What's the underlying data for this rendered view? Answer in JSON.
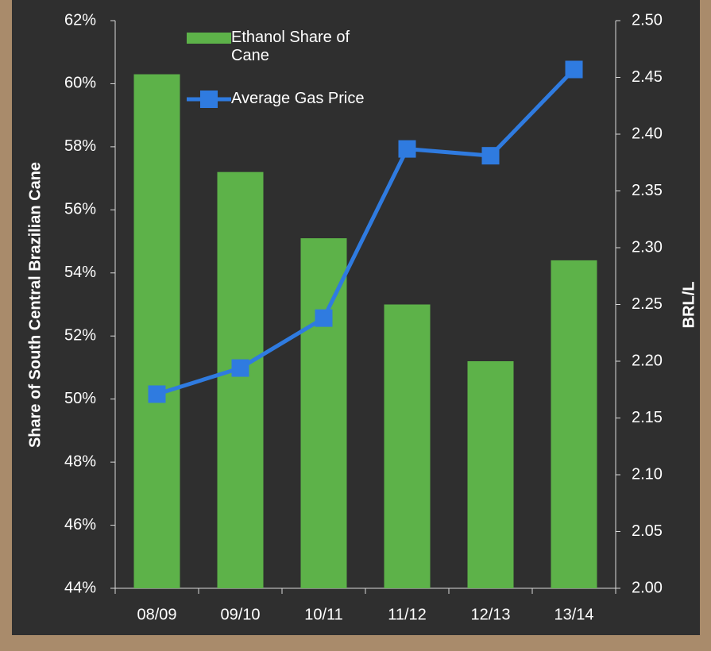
{
  "chart_data": {
    "type": "bar_line",
    "categories": [
      "08/09",
      "09/10",
      "10/11",
      "11/12",
      "12/13",
      "13/14"
    ],
    "series": [
      {
        "name": "Ethanol Share of Cane",
        "type": "bar",
        "color": "#5db249",
        "values": [
          60.3,
          57.2,
          55.1,
          53.0,
          51.2,
          54.4
        ]
      },
      {
        "name": "Average Gas Price",
        "type": "line",
        "axis": "y2",
        "color": "#2f7be0",
        "values": [
          2.171,
          2.194,
          2.238,
          2.387,
          2.381,
          2.457
        ]
      }
    ],
    "ylabel": "Share of South Central Brazilian Cane",
    "y2label": "BRL/L",
    "ylim": [
      44,
      62
    ],
    "yticks": [
      {
        "value": 44,
        "label": "44%"
      },
      {
        "value": 46,
        "label": "46%"
      },
      {
        "value": 48,
        "label": "48%"
      },
      {
        "value": 50,
        "label": "50%"
      },
      {
        "value": 52,
        "label": "52%"
      },
      {
        "value": 54,
        "label": "54%"
      },
      {
        "value": 56,
        "label": "56%"
      },
      {
        "value": 58,
        "label": "58%"
      },
      {
        "value": 60,
        "label": "60%"
      },
      {
        "value": 62,
        "label": "62%"
      }
    ],
    "y2lim": [
      2.0,
      2.5
    ],
    "y2ticks": [
      {
        "value": 2.0,
        "label": "2.00"
      },
      {
        "value": 2.05,
        "label": "2.05"
      },
      {
        "value": 2.1,
        "label": "2.10"
      },
      {
        "value": 2.15,
        "label": "2.15"
      },
      {
        "value": 2.2,
        "label": "2.20"
      },
      {
        "value": 2.25,
        "label": "2.25"
      },
      {
        "value": 2.3,
        "label": "2.30"
      },
      {
        "value": 2.35,
        "label": "2.35"
      },
      {
        "value": 2.4,
        "label": "2.40"
      },
      {
        "value": 2.45,
        "label": "2.45"
      },
      {
        "value": 2.5,
        "label": "2.50"
      }
    ],
    "grid": false,
    "legend": "top-left"
  }
}
